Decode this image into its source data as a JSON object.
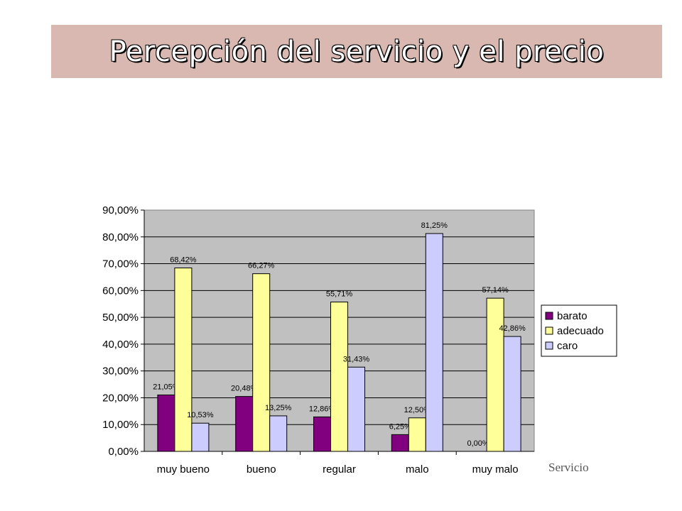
{
  "page": {
    "title": "Percepción del servicio y el precio"
  },
  "chart_data": {
    "type": "bar",
    "categories": [
      "muy bueno",
      "bueno",
      "regular",
      "malo",
      "muy malo"
    ],
    "series": [
      {
        "name": "barato",
        "values": [
          21.05,
          20.48,
          12.86,
          6.25,
          0.0
        ],
        "color": "#800080",
        "labels": [
          "21,05%",
          "20,48%",
          "12,86%",
          "6,25%",
          "0,00%"
        ]
      },
      {
        "name": "adecuado",
        "values": [
          68.42,
          66.27,
          55.71,
          12.5,
          57.14
        ],
        "color": "#ffff99",
        "labels": [
          "68,42%",
          "66,27%",
          "55,71%",
          "12,50%",
          "57,14%"
        ]
      },
      {
        "name": "caro",
        "values": [
          10.53,
          13.25,
          31.43,
          81.25,
          42.86
        ],
        "color": "#ccccff",
        "labels": [
          "10,53%",
          "13,25%",
          "31,43%",
          "81,25%",
          "42,86%"
        ]
      }
    ],
    "ylim": [
      0,
      90
    ],
    "yticks": [
      "0,00%",
      "10,00%",
      "20,00%",
      "30,00%",
      "40,00%",
      "50,00%",
      "60,00%",
      "70,00%",
      "80,00%",
      "90,00%"
    ],
    "xlabel": "Servicio",
    "ylabel": "",
    "plot_background": "#c0c0c0",
    "grid": true,
    "legend": "right"
  }
}
